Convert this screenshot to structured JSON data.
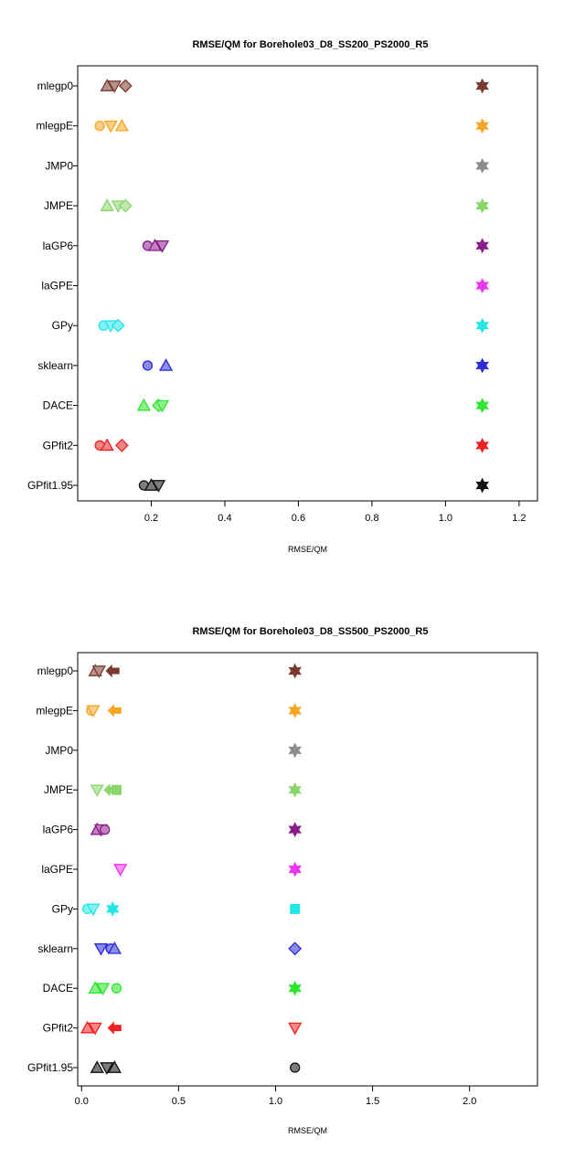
{
  "chart_data": [
    {
      "type": "scatter",
      "title": "RMSE/QM for Borehole03_D8_SS200_PS2000_R5",
      "xlabel": "RMSE/QM",
      "ylabel": "",
      "xlim": [
        0.0,
        1.25
      ],
      "xticks": [
        "0.2",
        "0.4",
        "0.6",
        "0.8",
        "1.0",
        "1.2"
      ],
      "xtick_values": [
        0.2,
        0.4,
        0.6,
        0.8,
        1.0,
        1.2
      ],
      "grid": false,
      "categories": [
        "mlegp0",
        "mlegpE",
        "JMP0",
        "JMPE",
        "laGP6",
        "laGPE",
        "GPy",
        "sklearn",
        "DACE",
        "GPfit2",
        "GPfit1.95"
      ],
      "category_labels": [
        "mlegp0",
        "mlegpE",
        "JMP0",
        "JMPE",
        "laGP6",
        "laGPE",
        "GPy",
        "sklearn",
        "DACE",
        "GPfit2",
        "GPfit1.95"
      ],
      "series": [
        {
          "category": "mlegp0",
          "color": "#7a3a2e",
          "points": [
            [
              0.08,
              "triangle"
            ],
            [
              0.1,
              "down-triangle"
            ],
            [
              0.13,
              "diamond"
            ],
            [
              1.1,
              "star"
            ]
          ]
        },
        {
          "category": "mlegpE",
          "color": "#f5a623",
          "points": [
            [
              0.06,
              "circle"
            ],
            [
              0.09,
              "down-triangle"
            ],
            [
              0.12,
              "triangle"
            ],
            [
              1.1,
              "star"
            ]
          ]
        },
        {
          "category": "JMP0",
          "color": "#8c8c8c",
          "points": [
            [
              1.1,
              "star"
            ]
          ]
        },
        {
          "category": "JMPE",
          "color": "#8ad66b",
          "points": [
            [
              0.08,
              "triangle"
            ],
            [
              0.11,
              "down-triangle"
            ],
            [
              0.13,
              "diamond"
            ],
            [
              1.1,
              "star"
            ]
          ]
        },
        {
          "category": "laGP6",
          "color": "#8b1a8b",
          "points": [
            [
              0.19,
              "circle"
            ],
            [
              0.21,
              "triangle"
            ],
            [
              0.23,
              "down-triangle"
            ],
            [
              1.1,
              "star"
            ]
          ]
        },
        {
          "category": "laGPE",
          "color": "#ee33ee",
          "points": [
            [
              1.1,
              "star"
            ]
          ]
        },
        {
          "category": "GPy",
          "color": "#22e6e6",
          "points": [
            [
              0.07,
              "circle"
            ],
            [
              0.09,
              "down-triangle"
            ],
            [
              0.11,
              "diamond"
            ],
            [
              1.1,
              "star"
            ]
          ]
        },
        {
          "category": "sklearn",
          "color": "#2a2ad6",
          "points": [
            [
              0.19,
              "circle"
            ],
            [
              0.24,
              "triangle"
            ],
            [
              1.1,
              "star"
            ]
          ]
        },
        {
          "category": "DACE",
          "color": "#2ee62e",
          "points": [
            [
              0.18,
              "triangle"
            ],
            [
              0.22,
              "diamond"
            ],
            [
              0.23,
              "down-triangle"
            ],
            [
              1.1,
              "star"
            ]
          ]
        },
        {
          "category": "GPfit2",
          "color": "#ee2222",
          "points": [
            [
              0.06,
              "circle"
            ],
            [
              0.08,
              "triangle"
            ],
            [
              0.12,
              "diamond"
            ],
            [
              1.1,
              "star"
            ]
          ]
        },
        {
          "category": "GPfit1.95",
          "color": "#111111",
          "points": [
            [
              0.18,
              "circle"
            ],
            [
              0.2,
              "triangle"
            ],
            [
              0.22,
              "down-triangle"
            ],
            [
              1.1,
              "star"
            ]
          ]
        }
      ]
    },
    {
      "type": "scatter",
      "title": "RMSE/QM for Borehole03_D8_SS500_PS2000_R5",
      "xlabel": "RMSE/QM",
      "ylabel": "",
      "xlim": [
        -0.02,
        2.35
      ],
      "xticks": [
        "0.0",
        "0.5",
        "1.0",
        "1.5",
        "2.0"
      ],
      "xtick_values": [
        0.0,
        0.5,
        1.0,
        1.5,
        2.0
      ],
      "grid": false,
      "categories": [
        "mlegp0",
        "mlegpE",
        "JMP0",
        "JMPE",
        "laGP6",
        "laGPE",
        "GPy",
        "sklearn",
        "DACE",
        "GPfit2",
        "GPfit1.95"
      ],
      "category_labels": [
        "mlegp0",
        "mlegpE",
        "JMP0",
        "JMPE",
        "laGP6",
        "laGPE",
        "GPy",
        "sklearn",
        "DACE",
        "GPfit2",
        "GPfit1.95"
      ],
      "series": [
        {
          "category": "mlegp0",
          "color": "#7a3a2e",
          "points": [
            [
              0.07,
              "triangle"
            ],
            [
              0.09,
              "down-triangle"
            ],
            [
              0.16,
              "arrow-left"
            ],
            [
              1.1,
              "star"
            ]
          ]
        },
        {
          "category": "mlegpE",
          "color": "#f5a623",
          "points": [
            [
              0.05,
              "circle"
            ],
            [
              0.06,
              "down-triangle"
            ],
            [
              0.17,
              "arrow-left"
            ],
            [
              1.1,
              "star"
            ]
          ]
        },
        {
          "category": "JMP0",
          "color": "#8c8c8c",
          "points": [
            [
              1.1,
              "star"
            ]
          ]
        },
        {
          "category": "JMPE",
          "color": "#8ad66b",
          "points": [
            [
              0.08,
              "down-triangle"
            ],
            [
              0.15,
              "arrow-left"
            ],
            [
              0.18,
              "square"
            ],
            [
              1.1,
              "star"
            ]
          ]
        },
        {
          "category": "laGP6",
          "color": "#8b1a8b",
          "points": [
            [
              0.08,
              "triangle"
            ],
            [
              0.1,
              "down-triangle"
            ],
            [
              0.12,
              "circle"
            ],
            [
              1.1,
              "star"
            ]
          ]
        },
        {
          "category": "laGPE",
          "color": "#ee33ee",
          "points": [
            [
              0.2,
              "down-triangle"
            ],
            [
              1.1,
              "star"
            ]
          ]
        },
        {
          "category": "GPy",
          "color": "#22e6e6",
          "points": [
            [
              0.03,
              "circle"
            ],
            [
              0.06,
              "down-triangle"
            ],
            [
              0.16,
              "star"
            ],
            [
              1.1,
              "square"
            ]
          ]
        },
        {
          "category": "sklearn",
          "color": "#2a2ad6",
          "points": [
            [
              0.1,
              "down-triangle"
            ],
            [
              0.15,
              "circle"
            ],
            [
              0.17,
              "triangle"
            ],
            [
              1.1,
              "diamond"
            ]
          ]
        },
        {
          "category": "DACE",
          "color": "#2ee62e",
          "points": [
            [
              0.07,
              "triangle"
            ],
            [
              0.11,
              "down-triangle"
            ],
            [
              0.18,
              "circle"
            ],
            [
              1.1,
              "star"
            ]
          ]
        },
        {
          "category": "GPfit2",
          "color": "#ee2222",
          "points": [
            [
              0.03,
              "triangle"
            ],
            [
              0.07,
              "down-triangle"
            ],
            [
              0.17,
              "arrow-left"
            ],
            [
              1.1,
              "down-triangle"
            ]
          ]
        },
        {
          "category": "GPfit1.95",
          "color": "#111111",
          "points": [
            [
              0.08,
              "triangle"
            ],
            [
              0.13,
              "down-triangle"
            ],
            [
              0.17,
              "triangle"
            ],
            [
              1.1,
              "circle"
            ]
          ]
        }
      ]
    }
  ]
}
